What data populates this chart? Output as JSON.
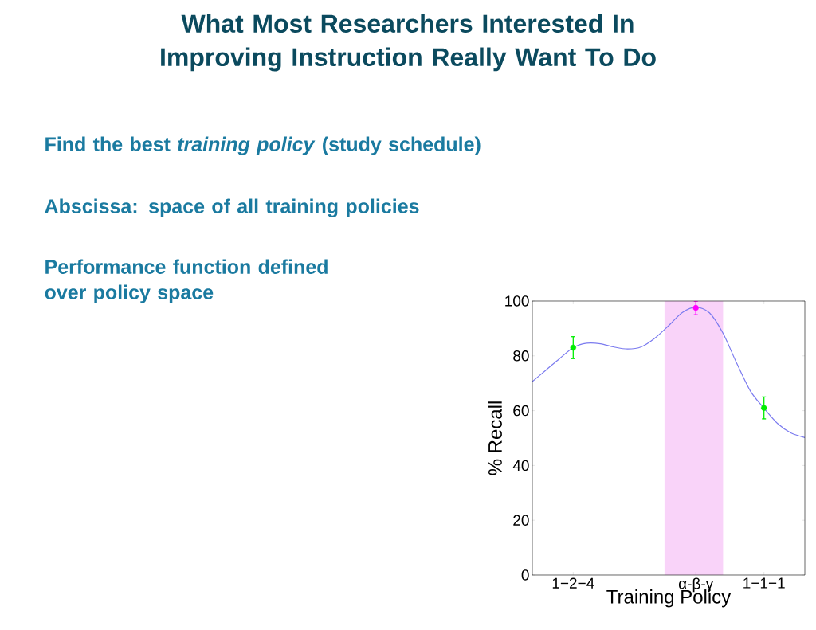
{
  "chart_data": {
    "type": "line",
    "title": "What Most Researchers Interested In Improving Instruction Really Want To Do",
    "annotations": [
      "Find the best *training policy* (study schedule)",
      "Abscissa: space of all training policies",
      "Performance function defined over policy space"
    ],
    "xlabel": "Training Policy",
    "ylabel": "% Recall",
    "categories": [
      null,
      null,
      null,
      "1−2−4",
      null,
      null,
      null,
      null,
      null,
      null,
      null,
      null,
      "α-β-γ",
      null,
      null,
      null,
      null,
      "1−1−1",
      null,
      null,
      null
    ],
    "ylim": [
      0,
      100
    ],
    "yticks": [
      0,
      20,
      40,
      60,
      80,
      100
    ],
    "series": [
      {
        "color": "#7b7bef",
        "marker": "none",
        "line_style": "solid",
        "values": [
          70.6,
          74.8,
          79.0,
          83.0,
          84.6,
          84.4,
          83.2,
          82.5,
          83.3,
          86.5,
          91.0,
          95.8,
          97.8,
          95.7,
          88.2,
          77.3,
          67.2,
          60.9,
          55.3,
          51.8,
          50.2
        ]
      },
      {
        "type": "scatter",
        "color": "#00ee00",
        "marker": "circle",
        "values": [
          null,
          null,
          null,
          83,
          null,
          null,
          null,
          null,
          null,
          null,
          null,
          null,
          null,
          null,
          null,
          null,
          null,
          61,
          null,
          null,
          null
        ],
        "errors": [
          null,
          null,
          null,
          4,
          null,
          null,
          null,
          null,
          null,
          null,
          null,
          null,
          null,
          null,
          null,
          null,
          null,
          4,
          null,
          null,
          null
        ]
      },
      {
        "type": "scatter",
        "color": "#ff00ff",
        "marker": "circle",
        "values": [
          null,
          null,
          null,
          null,
          null,
          null,
          null,
          null,
          null,
          null,
          null,
          null,
          97.5,
          null,
          null,
          null,
          null,
          null,
          null,
          null,
          null
        ],
        "errors": [
          null,
          null,
          null,
          null,
          null,
          null,
          null,
          null,
          null,
          null,
          null,
          null,
          2.5,
          null,
          null,
          null,
          null,
          null,
          null,
          null,
          null
        ]
      }
    ]
  }
}
